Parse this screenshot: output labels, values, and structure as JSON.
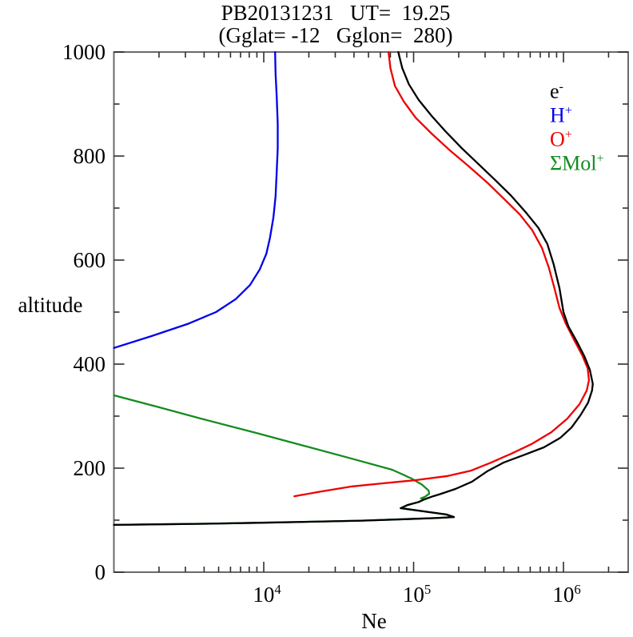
{
  "title": {
    "line1": "PB20131231   UT=  19.25",
    "line2": "(Gglat= -12   Gglon=  280)"
  },
  "axes": {
    "y": {
      "label": "altitude",
      "major_ticks": [
        {
          "label": "0",
          "value": 0
        },
        {
          "label": "200",
          "value": 200
        },
        {
          "label": "400",
          "value": 400
        },
        {
          "label": "600",
          "value": 600
        },
        {
          "label": "800",
          "value": 800
        },
        {
          "label": "1000",
          "value": 1000
        }
      ],
      "minor_ticks": [
        100,
        300,
        500,
        700,
        900
      ]
    },
    "x": {
      "label": "Ne",
      "scale": "log",
      "major_ticks": [
        {
          "mantissa": "10",
          "exponent": "4",
          "value": 10000
        },
        {
          "mantissa": "10",
          "exponent": "5",
          "value": 100000
        },
        {
          "mantissa": "10",
          "exponent": "6",
          "value": 1000000
        }
      ]
    }
  },
  "legend": {
    "position": "inside-top-right",
    "items": [
      {
        "base": "e",
        "sup": "-",
        "color": "#000000"
      },
      {
        "base": "H",
        "sup": "+",
        "color": "#0000ee"
      },
      {
        "base": "O",
        "sup": "+",
        "color": "#ee0000"
      },
      {
        "base": "ΣMol",
        "sup": "+",
        "color": "#128c1e"
      }
    ]
  },
  "chart_data": {
    "type": "line",
    "title": "PB20131231 UT= 19.25 (Gglat= -12 Gglon= 280)",
    "xlabel": "Ne",
    "ylabel": "altitude",
    "x_scale": "log",
    "xlim": [
      1000,
      2700000
    ],
    "ylim": [
      0,
      1000
    ],
    "grid": false,
    "legend_position": "inside-top-right",
    "series": [
      {
        "name": "ΣMol+",
        "color": "#128c1e",
        "points": [
          [
            1000,
            340
          ],
          [
            2000,
            317
          ],
          [
            4200,
            292
          ],
          [
            8800,
            268
          ],
          [
            18500,
            243
          ],
          [
            39000,
            218
          ],
          [
            72000,
            197
          ],
          [
            97000,
            180
          ],
          [
            114000,
            168
          ],
          [
            126000,
            157
          ],
          [
            127000,
            151
          ],
          [
            119000,
            145
          ],
          [
            112000,
            142
          ],
          [
            118000,
            140
          ],
          [
            108000,
            135
          ],
          [
            91000,
            129
          ],
          [
            82000,
            123
          ],
          [
            117000,
            117
          ],
          [
            165000,
            111
          ],
          [
            186000,
            106
          ],
          [
            140000,
            104
          ],
          [
            90000,
            102
          ],
          [
            45000,
            99
          ],
          [
            20000,
            97
          ],
          [
            9000,
            95
          ],
          [
            4000,
            93
          ],
          [
            2000,
            92
          ],
          [
            1000,
            91
          ]
        ]
      },
      {
        "name": "H+",
        "color": "#0000ee",
        "points": [
          [
            1000,
            431
          ],
          [
            1790,
            454
          ],
          [
            3100,
            477
          ],
          [
            4800,
            500
          ],
          [
            6500,
            525
          ],
          [
            8100,
            552
          ],
          [
            9400,
            582
          ],
          [
            10400,
            612
          ],
          [
            11000,
            643
          ],
          [
            11600,
            682
          ],
          [
            12000,
            723
          ],
          [
            12200,
            769
          ],
          [
            12400,
            815
          ],
          [
            12400,
            862
          ],
          [
            12200,
            915
          ],
          [
            12000,
            958
          ],
          [
            11900,
            1000
          ]
        ]
      },
      {
        "name": "O+",
        "color": "#ee0000",
        "points": [
          [
            16000,
            146
          ],
          [
            24000,
            155
          ],
          [
            39000,
            165
          ],
          [
            63000,
            171
          ],
          [
            103000,
            177
          ],
          [
            169000,
            185
          ],
          [
            240000,
            195
          ],
          [
            330000,
            211
          ],
          [
            450000,
            228
          ],
          [
            610000,
            246
          ],
          [
            830000,
            269
          ],
          [
            1060000,
            295
          ],
          [
            1280000,
            323
          ],
          [
            1430000,
            349
          ],
          [
            1480000,
            369
          ],
          [
            1450000,
            392
          ],
          [
            1330000,
            418
          ],
          [
            1180000,
            446
          ],
          [
            1040000,
            477
          ],
          [
            940000,
            508
          ],
          [
            870000,
            546
          ],
          [
            800000,
            585
          ],
          [
            720000,
            623
          ],
          [
            620000,
            657
          ],
          [
            510000,
            688
          ],
          [
            400000,
            718
          ],
          [
            310000,
            749
          ],
          [
            230000,
            782
          ],
          [
            173000,
            812
          ],
          [
            132000,
            843
          ],
          [
            103000,
            874
          ],
          [
            86000,
            905
          ],
          [
            75000,
            935
          ],
          [
            70000,
            969
          ],
          [
            68000,
            1000
          ]
        ]
      },
      {
        "name": "e-",
        "color": "#000000",
        "points": [
          [
            1000,
            91
          ],
          [
            2000,
            92
          ],
          [
            4000,
            93
          ],
          [
            9000,
            95
          ],
          [
            20000,
            97
          ],
          [
            45000,
            99
          ],
          [
            90000,
            102
          ],
          [
            140000,
            104
          ],
          [
            186000,
            106
          ],
          [
            165000,
            111
          ],
          [
            117000,
            117
          ],
          [
            82000,
            123
          ],
          [
            91000,
            129
          ],
          [
            108000,
            135
          ],
          [
            118000,
            140
          ],
          [
            135000,
            146
          ],
          [
            150000,
            150
          ],
          [
            190000,
            160
          ],
          [
            245000,
            174
          ],
          [
            310000,
            194
          ],
          [
            400000,
            211
          ],
          [
            540000,
            225
          ],
          [
            740000,
            240
          ],
          [
            950000,
            258
          ],
          [
            1130000,
            278
          ],
          [
            1300000,
            302
          ],
          [
            1460000,
            326
          ],
          [
            1550000,
            349
          ],
          [
            1570000,
            362
          ],
          [
            1500000,
            389
          ],
          [
            1380000,
            415
          ],
          [
            1230000,
            443
          ],
          [
            1080000,
            472
          ],
          [
            1000000,
            500
          ],
          [
            940000,
            546
          ],
          [
            860000,
            592
          ],
          [
            780000,
            631
          ],
          [
            680000,
            662
          ],
          [
            560000,
            692
          ],
          [
            450000,
            723
          ],
          [
            350000,
            754
          ],
          [
            270000,
            785
          ],
          [
            210000,
            815
          ],
          [
            165000,
            846
          ],
          [
            132000,
            877
          ],
          [
            108000,
            908
          ],
          [
            93000,
            938
          ],
          [
            84000,
            969
          ],
          [
            79000,
            1000
          ]
        ]
      }
    ]
  }
}
